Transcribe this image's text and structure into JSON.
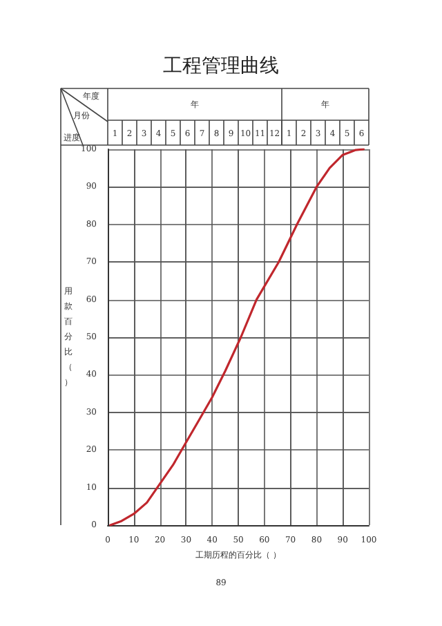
{
  "chart_data": {
    "type": "line",
    "title": "工程管理曲线",
    "xlabel": "工期历程的百分比（ ）",
    "ylabel": "用款百分比（）",
    "x": [
      1,
      5,
      10,
      15,
      20,
      25,
      30,
      35,
      40,
      45,
      51,
      57,
      65.5,
      72.5,
      80,
      85,
      90,
      95,
      98
    ],
    "series": [
      {
        "color": "#c0272d",
        "values": [
          0,
          1,
          3,
          6,
          11,
          16,
          22,
          28,
          34,
          41,
          50,
          60,
          70,
          80,
          90,
          95,
          98.5,
          99.8,
          100
        ]
      }
    ],
    "xlim": [
      0,
      100
    ],
    "xticks": [
      0,
      10,
      20,
      30,
      40,
      50,
      60,
      70,
      80,
      90,
      100
    ],
    "ylim": [
      0,
      100
    ],
    "yticks": [
      0,
      10,
      20,
      30,
      40,
      50,
      60,
      70,
      80,
      90,
      100
    ],
    "annotations": [
      "年",
      "年",
      "年度",
      "月份",
      "进度",
      "1 2 3 4 5 6 7 8 9 10 11 12",
      "1 2 3 4 5 6",
      "89"
    ],
    "grid": true,
    "marker": "none",
    "line_style": "solid"
  }
}
